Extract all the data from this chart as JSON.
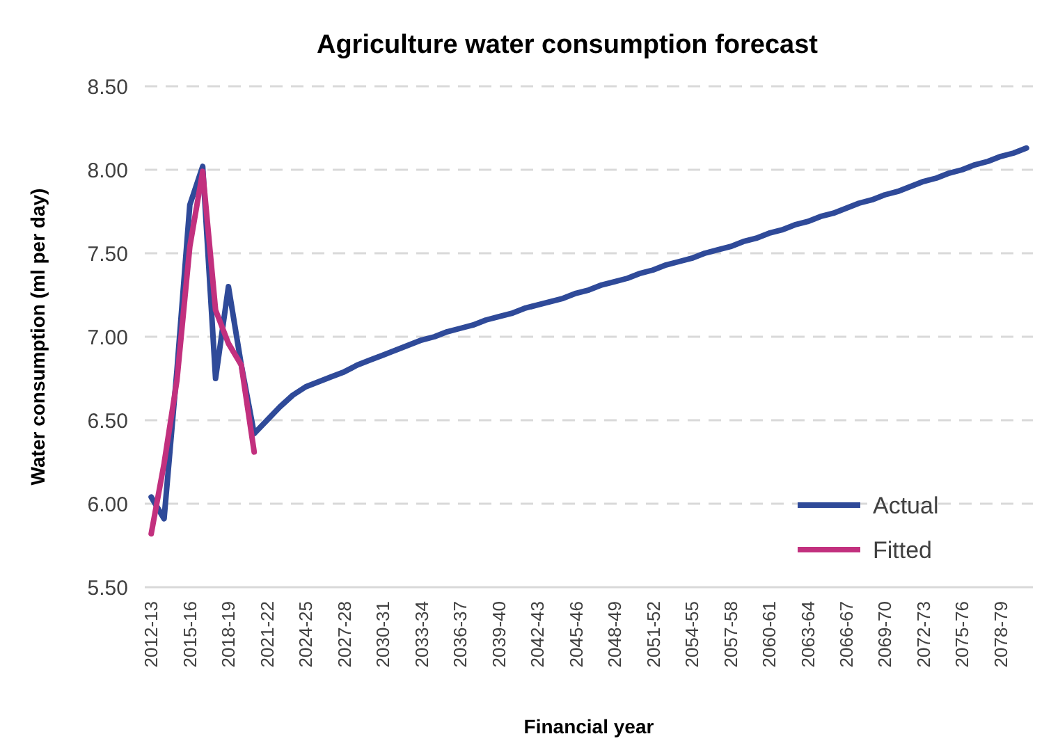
{
  "chart_data": {
    "type": "line",
    "title": "Agriculture water consumption forecast",
    "xlabel": "Financial year",
    "ylabel": "Water consumption (ml per day)",
    "categories": [
      "2012-13",
      null,
      null,
      "2015-16",
      null,
      null,
      "2018-19",
      null,
      null,
      "2021-22",
      null,
      null,
      "2024-25",
      null,
      null,
      "2027-28",
      null,
      null,
      "2030-31",
      null,
      null,
      "2033-34",
      null,
      null,
      "2036-37",
      null,
      null,
      "2039-40",
      null,
      null,
      "2042-43",
      null,
      null,
      "2045-46",
      null,
      null,
      "2048-49",
      null,
      null,
      "2051-52",
      null,
      null,
      "2054-55",
      null,
      null,
      "2057-58",
      null,
      null,
      "2060-61",
      null,
      null,
      "2063-64",
      null,
      null,
      "2066-67",
      null,
      null,
      "2069-70",
      null,
      null,
      "2072-73",
      null,
      null,
      "2075-76",
      null,
      null,
      "2078-79",
      null,
      null
    ],
    "series": [
      {
        "name": "Actual",
        "color": "#2f4a99",
        "values": [
          6.04,
          5.91,
          6.8,
          7.79,
          8.02,
          6.75,
          7.3,
          6.83,
          6.42,
          6.5,
          6.58,
          6.65,
          6.7,
          6.73,
          6.76,
          6.79,
          6.83,
          6.86,
          6.89,
          6.92,
          6.95,
          6.98,
          7.0,
          7.03,
          7.05,
          7.07,
          7.1,
          7.12,
          7.14,
          7.17,
          7.19,
          7.21,
          7.23,
          7.26,
          7.28,
          7.31,
          7.33,
          7.35,
          7.38,
          7.4,
          7.43,
          7.45,
          7.47,
          7.5,
          7.52,
          7.54,
          7.57,
          7.59,
          7.62,
          7.64,
          7.67,
          7.69,
          7.72,
          7.74,
          7.77,
          7.8,
          7.82,
          7.85,
          7.87,
          7.9,
          7.93,
          7.95,
          7.98,
          8.0,
          8.03,
          8.05,
          8.08,
          8.1,
          8.13
        ]
      },
      {
        "name": "Fitted",
        "color": "#c2307e",
        "values": [
          5.82,
          6.24,
          6.74,
          7.54,
          7.99,
          7.16,
          6.96,
          6.83,
          6.31,
          null,
          null,
          null,
          null,
          null,
          null,
          null,
          null,
          null,
          null,
          null,
          null,
          null,
          null,
          null,
          null,
          null,
          null,
          null,
          null,
          null,
          null,
          null,
          null,
          null,
          null,
          null,
          null,
          null,
          null,
          null,
          null,
          null,
          null,
          null,
          null,
          null,
          null,
          null,
          null,
          null,
          null,
          null,
          null,
          null,
          null,
          null,
          null,
          null,
          null,
          null,
          null,
          null,
          null,
          null,
          null,
          null,
          null,
          null,
          null
        ]
      }
    ],
    "ylim": [
      5.5,
      8.5
    ],
    "yticks": [
      {
        "value": 5.5,
        "label": "5.50"
      },
      {
        "value": 6,
        "label": "6.00"
      },
      {
        "value": 6.5,
        "label": "6.50"
      },
      {
        "value": 7,
        "label": "7.00"
      },
      {
        "value": 7.5,
        "label": "7.50"
      },
      {
        "value": 8,
        "label": "8.00"
      },
      {
        "value": 8.5,
        "label": "8.50"
      }
    ],
    "grid": "y",
    "legend": "bottom right",
    "line_style": "solid",
    "marker": "none"
  }
}
